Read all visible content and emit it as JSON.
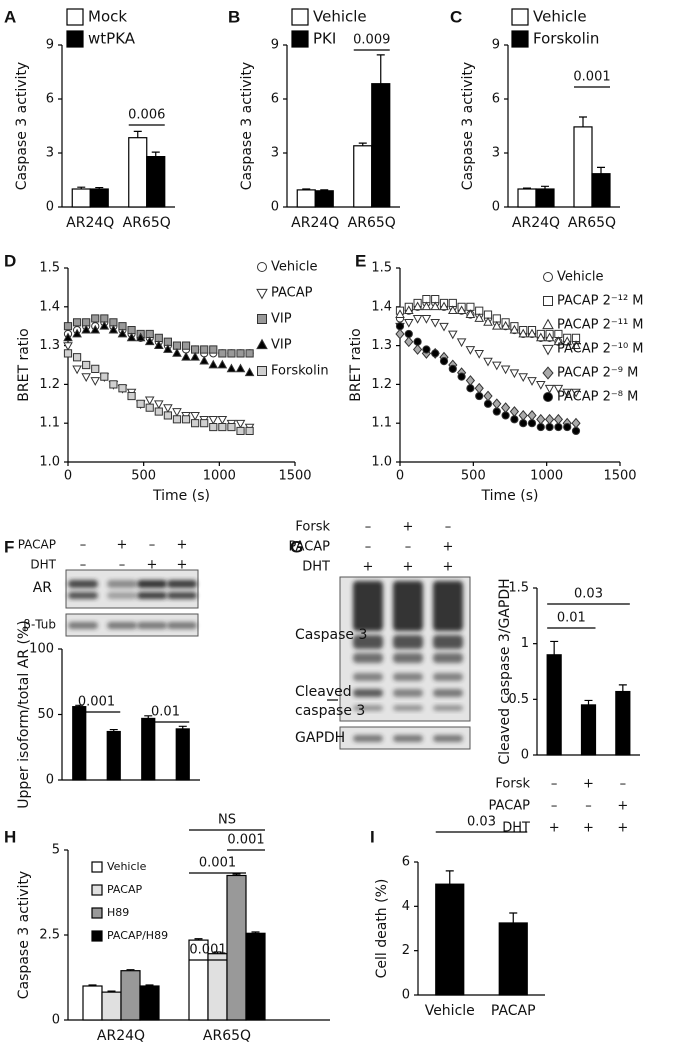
{
  "chart_data": [
    {
      "panel": "A",
      "type": "bar",
      "ylabel": "Caspase 3 activity",
      "categories": [
        "AR24Q",
        "AR65Q"
      ],
      "series": [
        {
          "name": "Mock",
          "color": "#ffffff",
          "values": [
            1.0,
            3.85
          ],
          "errors": [
            0.1,
            0.35
          ]
        },
        {
          "name": "wtPKA",
          "color": "#000000",
          "values": [
            1.0,
            2.8
          ],
          "errors": [
            0.08,
            0.25
          ]
        }
      ],
      "ylim": [
        0,
        9
      ],
      "yticks": [
        0,
        3,
        6,
        9
      ],
      "annotations": [
        "0.006"
      ]
    },
    {
      "panel": "B",
      "type": "bar",
      "ylabel": "Caspase 3 activity",
      "categories": [
        "AR24Q",
        "AR65Q"
      ],
      "series": [
        {
          "name": "Vehicle",
          "color": "#ffffff",
          "values": [
            0.95,
            3.4
          ],
          "errors": [
            0.05,
            0.15
          ]
        },
        {
          "name": "PKI",
          "color": "#000000",
          "values": [
            0.9,
            6.85
          ],
          "errors": [
            0.05,
            1.6
          ]
        }
      ],
      "ylim": [
        0,
        9
      ],
      "yticks": [
        0,
        3,
        6,
        9
      ],
      "annotations": [
        "0.009"
      ]
    },
    {
      "panel": "C",
      "type": "bar",
      "ylabel": "Caspase 3 activity",
      "categories": [
        "AR24Q",
        "AR65Q"
      ],
      "series": [
        {
          "name": "Vehicle",
          "color": "#ffffff",
          "values": [
            1.0,
            4.45
          ],
          "errors": [
            0.05,
            0.55
          ]
        },
        {
          "name": "Forskolin",
          "color": "#000000",
          "values": [
            1.0,
            1.85
          ],
          "errors": [
            0.15,
            0.35
          ]
        }
      ],
      "ylim": [
        0,
        9
      ],
      "yticks": [
        0,
        3,
        6,
        9
      ],
      "annotations": [
        "0.001"
      ]
    },
    {
      "panel": "D",
      "type": "scatter",
      "ylabel": "BRET ratio",
      "xlabel": "Time (s)",
      "x": [
        0,
        60,
        120,
        180,
        240,
        300,
        360,
        420,
        480,
        540,
        600,
        660,
        720,
        780,
        840,
        900,
        960,
        1020,
        1080,
        1140,
        1200
      ],
      "series": [
        {
          "name": "Vehicle",
          "marker": "circle",
          "color": "#ffffff",
          "values": [
            1.33,
            1.34,
            1.35,
            1.35,
            1.36,
            1.35,
            1.34,
            1.33,
            1.32,
            1.32,
            1.31,
            1.3,
            1.3,
            1.29,
            1.29,
            1.28,
            1.28,
            1.28,
            1.28,
            1.28,
            1.28
          ]
        },
        {
          "name": "PACAP",
          "marker": "triangle-down",
          "color": "#ffffff",
          "values": [
            1.3,
            1.24,
            1.22,
            1.21,
            1.22,
            1.2,
            1.19,
            1.18,
            1.15,
            1.16,
            1.15,
            1.14,
            1.13,
            1.12,
            1.12,
            1.11,
            1.11,
            1.11,
            1.1,
            1.1,
            1.09
          ]
        },
        {
          "name": "VIP",
          "marker": "square",
          "color": "#999999",
          "values": [
            1.35,
            1.36,
            1.36,
            1.37,
            1.37,
            1.36,
            1.35,
            1.34,
            1.33,
            1.33,
            1.32,
            1.31,
            1.3,
            1.3,
            1.29,
            1.29,
            1.29,
            1.28,
            1.28,
            1.28,
            1.28
          ]
        },
        {
          "name": "VIP",
          "marker": "triangle-up",
          "color": "#000000",
          "values": [
            1.32,
            1.33,
            1.34,
            1.34,
            1.35,
            1.34,
            1.33,
            1.32,
            1.32,
            1.31,
            1.3,
            1.29,
            1.28,
            1.27,
            1.27,
            1.26,
            1.25,
            1.25,
            1.24,
            1.24,
            1.23
          ]
        },
        {
          "name": "Forskolin",
          "marker": "square",
          "color": "#d0d0d0",
          "values": [
            1.28,
            1.27,
            1.25,
            1.24,
            1.22,
            1.2,
            1.19,
            1.17,
            1.15,
            1.14,
            1.13,
            1.12,
            1.11,
            1.11,
            1.1,
            1.1,
            1.09,
            1.09,
            1.09,
            1.08,
            1.08
          ]
        }
      ],
      "xlim": [
        0,
        1500
      ],
      "xticks": [
        0,
        500,
        1000,
        1500
      ],
      "ylim": [
        1.0,
        1.5
      ],
      "yticks": [
        {
          "value": 1.0,
          "label": "1.0"
        },
        1.1,
        1.2,
        1.3,
        1.4,
        1.5
      ]
    },
    {
      "panel": "E",
      "type": "scatter",
      "ylabel": "BRET ratio",
      "xlabel": "Time (s)",
      "x": [
        0,
        60,
        120,
        180,
        240,
        300,
        360,
        420,
        480,
        540,
        600,
        660,
        720,
        780,
        840,
        900,
        960,
        1020,
        1080,
        1140,
        1200
      ],
      "series": [
        {
          "name": "Vehicle",
          "marker": "circle",
          "color": "#ffffff",
          "values": [
            1.37,
            1.39,
            1.4,
            1.41,
            1.41,
            1.4,
            1.4,
            1.39,
            1.38,
            1.38,
            1.37,
            1.36,
            1.35,
            1.34,
            1.33,
            1.33,
            1.32,
            1.32,
            1.31,
            1.31,
            1.31
          ]
        },
        {
          "name": "PACAP 2⁻¹² M",
          "marker": "square",
          "color": "#ffffff",
          "values": [
            1.39,
            1.4,
            1.41,
            1.42,
            1.42,
            1.41,
            1.41,
            1.4,
            1.4,
            1.39,
            1.38,
            1.37,
            1.36,
            1.35,
            1.34,
            1.34,
            1.33,
            1.33,
            1.33,
            1.32,
            1.32
          ]
        },
        {
          "name": "PACAP 2⁻¹¹ M",
          "marker": "triangle-up",
          "color": "#ffffff",
          "values": [
            1.38,
            1.39,
            1.4,
            1.4,
            1.4,
            1.4,
            1.39,
            1.39,
            1.38,
            1.37,
            1.36,
            1.35,
            1.35,
            1.34,
            1.33,
            1.33,
            1.32,
            1.32,
            1.31,
            1.31,
            1.3
          ]
        },
        {
          "name": "PACAP 2⁻¹⁰ M",
          "marker": "triangle-down",
          "color": "#ffffff",
          "values": [
            1.35,
            1.36,
            1.37,
            1.37,
            1.36,
            1.35,
            1.33,
            1.31,
            1.29,
            1.28,
            1.26,
            1.25,
            1.24,
            1.23,
            1.22,
            1.21,
            1.2,
            1.19,
            1.19,
            1.18,
            1.18
          ]
        },
        {
          "name": "PACAP 2⁻⁹ M",
          "marker": "diamond",
          "color": "#aaaaaa",
          "values": [
            1.33,
            1.31,
            1.29,
            1.28,
            1.28,
            1.27,
            1.25,
            1.23,
            1.21,
            1.19,
            1.17,
            1.15,
            1.14,
            1.13,
            1.12,
            1.12,
            1.11,
            1.11,
            1.11,
            1.1,
            1.1
          ]
        },
        {
          "name": "PACAP 2⁻⁸ M",
          "marker": "circle",
          "color": "#000000",
          "values": [
            1.35,
            1.33,
            1.31,
            1.29,
            1.28,
            1.26,
            1.24,
            1.22,
            1.19,
            1.17,
            1.15,
            1.13,
            1.12,
            1.11,
            1.1,
            1.1,
            1.09,
            1.09,
            1.09,
            1.09,
            1.08
          ]
        }
      ],
      "xlim": [
        0,
        1500
      ],
      "xticks": [
        0,
        500,
        1000,
        1500
      ],
      "ylim": [
        1.0,
        1.5
      ],
      "yticks": [
        {
          "value": 1.0,
          "label": "1.0"
        },
        1.1,
        1.2,
        1.3,
        1.4,
        1.5
      ]
    },
    {
      "panel": "F",
      "type": "bar",
      "ylabel": "Upper isoform/total AR (%)",
      "blot": {
        "rows": [
          "AR",
          "β-Tub"
        ]
      },
      "conditions": [
        {
          "name": "PACAP",
          "signs": [
            "–",
            "+",
            "–",
            "+"
          ]
        },
        {
          "name": "DHT",
          "signs": [
            "–",
            "–",
            "+",
            "+"
          ]
        }
      ],
      "categories": [
        null,
        null,
        null,
        null
      ],
      "values": [
        56,
        37,
        47,
        39
      ],
      "errors": [
        1,
        1.5,
        2,
        2
      ],
      "color": "#000000",
      "ylim": [
        0,
        100
      ],
      "yticks": [
        0,
        50,
        100
      ],
      "annotations": [
        "0.001",
        "0.01"
      ]
    },
    {
      "panel": "G",
      "type": "bar",
      "ylabel": "Cleaved caspase 3/GAPDH",
      "blot": {
        "rows": [
          "Caspase 3",
          [
            "Cleaved",
            "caspase 3"
          ],
          "GAPDH"
        ]
      },
      "conditions": [
        {
          "name": "Forsk",
          "signs": [
            "–",
            "+",
            "–"
          ]
        },
        {
          "name": "PACAP",
          "signs": [
            "–",
            "–",
            "+"
          ]
        },
        {
          "name": "DHT",
          "signs": [
            "+",
            "+",
            "+"
          ]
        }
      ],
      "categories": [
        null,
        null,
        null
      ],
      "values": [
        0.9,
        0.45,
        0.57
      ],
      "errors": [
        0.12,
        0.04,
        0.06
      ],
      "color": "#000000",
      "ylim": [
        0,
        1.5
      ],
      "yticks": [
        0,
        0.5,
        1,
        1.5
      ],
      "annotations": [
        "0.01",
        "0.03"
      ]
    },
    {
      "panel": "H",
      "type": "bar",
      "ylabel": "Caspase 3 activity",
      "categories": [
        "AR24Q",
        "AR65Q"
      ],
      "series": [
        {
          "name": "Vehicle",
          "color": "#ffffff",
          "values": [
            1.0,
            2.35
          ],
          "errors": [
            0.03,
            0.04
          ]
        },
        {
          "name": "PACAP",
          "color": "#e0e0e0",
          "values": [
            0.82,
            1.95
          ],
          "errors": [
            0.03,
            0.05
          ]
        },
        {
          "name": "H89",
          "color": "#999999",
          "values": [
            1.45,
            4.25
          ],
          "errors": [
            0.03,
            0.04
          ]
        },
        {
          "name": "PACAP/H89",
          "color": "#000000",
          "values": [
            1.0,
            2.55
          ],
          "errors": [
            0.03,
            0.04
          ]
        }
      ],
      "ylim": [
        0,
        5
      ],
      "yticks": [
        0,
        2.5,
        5
      ],
      "annotations": [
        "0.001",
        "0.001",
        "0.001",
        "NS"
      ]
    },
    {
      "panel": "I",
      "type": "bar",
      "ylabel": "Cell death (%)",
      "categories": [
        "Vehicle",
        "PACAP"
      ],
      "values": [
        5.0,
        3.25
      ],
      "errors": [
        0.6,
        0.45
      ],
      "color": "#000000",
      "ylim": [
        0,
        6
      ],
      "yticks": [
        0,
        2,
        4,
        6
      ],
      "annotations": [
        "0.03"
      ]
    }
  ]
}
